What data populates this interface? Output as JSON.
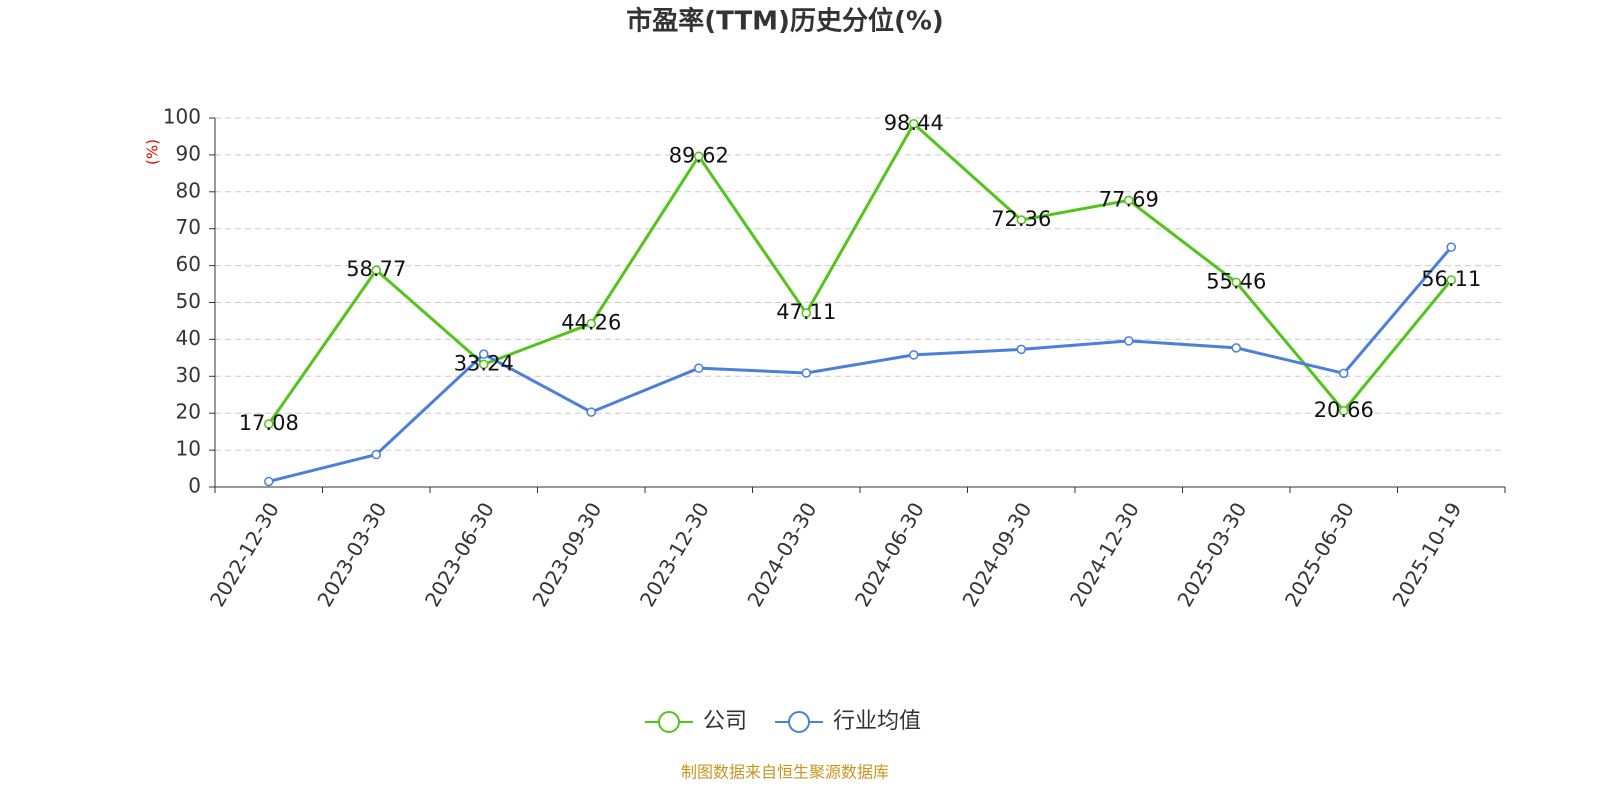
{
  "chart_data": {
    "type": "line",
    "title": "市盈率(TTM)历史分位(%)",
    "y_label": "(%)",
    "source": "制图数据来自恒生聚源数据库",
    "categories": [
      "2022-12-30",
      "2023-03-30",
      "2023-06-30",
      "2023-09-30",
      "2023-12-30",
      "2024-03-30",
      "2024-06-30",
      "2024-09-30",
      "2024-12-30",
      "2025-03-30",
      "2025-06-30",
      "2025-10-19"
    ],
    "series": [
      {
        "name": "公司",
        "color": "#52c41a",
        "labels": true,
        "values": [
          17.08,
          58.77,
          33.24,
          44.26,
          89.62,
          47.11,
          98.44,
          72.36,
          77.69,
          55.46,
          20.66,
          56.11
        ]
      },
      {
        "name": "行业均值",
        "color": "#4a7fdc",
        "labels": false,
        "values": [
          1.5,
          8.8,
          36,
          20.3,
          32.2,
          30.9,
          35.8,
          37.3,
          39.6,
          37.7,
          30.8,
          65
        ]
      }
    ],
    "ylim": [
      0,
      100
    ],
    "yticks": [
      0,
      10,
      20,
      30,
      40,
      50,
      60,
      70,
      80,
      90,
      100
    ],
    "grid": true
  }
}
